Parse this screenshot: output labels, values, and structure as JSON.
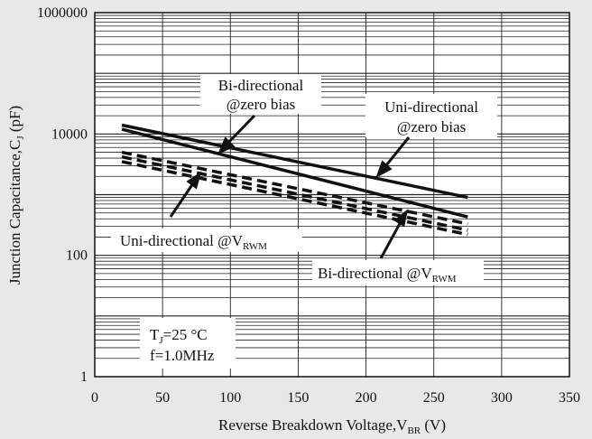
{
  "chart_data": {
    "type": "line",
    "title": "",
    "xlabel": "Reverse  Breakdown Voltage,V",
    "xlabel_sub": "BR",
    "xlabel_unit": "  (V)",
    "ylabel": "Junction Capacitance,C",
    "ylabel_sub": "J",
    "ylabel_unit": "  (pF)",
    "xlim": [
      0,
      350
    ],
    "ylim": [
      1,
      1000000
    ],
    "yscale": "log",
    "grid": true,
    "x_ticks": [
      "0",
      "50",
      "100",
      "150",
      "200",
      "250",
      "300",
      "350"
    ],
    "y_ticks": [
      "1",
      "100",
      "10000",
      "1000000"
    ],
    "series": [
      {
        "style": "solid",
        "x": [
          20,
          275
        ],
        "y": [
          14000,
          900
        ]
      },
      {
        "style": "solid",
        "x": [
          20,
          275
        ],
        "y": [
          12000,
          430
        ]
      },
      {
        "style": "dashed",
        "x": [
          20,
          275
        ],
        "y": [
          5000,
          330
        ]
      },
      {
        "style": "dashed",
        "x": [
          20,
          275
        ],
        "y": [
          4200,
          260
        ]
      },
      {
        "style": "dashed",
        "x": [
          20,
          275
        ],
        "y": [
          3500,
          220
        ]
      }
    ],
    "annotations": [
      {
        "id": "bi-zero",
        "lines": [
          "Bi-directional",
          "@zero bias"
        ]
      },
      {
        "id": "uni-zero",
        "lines": [
          "Uni-directional",
          "@zero bias"
        ]
      },
      {
        "id": "uni-vrwm",
        "text": "Uni-directional @V",
        "sub": "RWM"
      },
      {
        "id": "bi-vrwm",
        "text": "Bi-directional @V",
        "sub": "RWM"
      },
      {
        "id": "conditions-tj",
        "text": "T",
        "sub": "J",
        "rest": "=25 °C"
      },
      {
        "id": "conditions-f",
        "text": "f=1.0MHz"
      }
    ]
  }
}
